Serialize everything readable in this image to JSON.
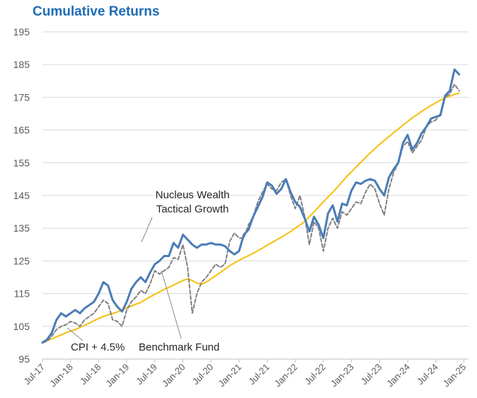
{
  "chart_data": {
    "type": "line",
    "title": "Cumulative Returns",
    "xlabel": "",
    "ylabel": "",
    "ylim": [
      95,
      195
    ],
    "yticks": [
      95,
      105,
      115,
      125,
      135,
      145,
      155,
      165,
      175,
      185,
      195
    ],
    "xlim": [
      0,
      91
    ],
    "xtick_labels": [
      "Jul-17",
      "Jan-18",
      "Jul-18",
      "Jan-19",
      "Jul-19",
      "Jan-20",
      "Jul-20",
      "Jan-21",
      "Jul-21",
      "Jan-22",
      "Jul-22",
      "Jan-23",
      "Jul-23",
      "Jan-24",
      "Jul-24",
      "Jan-25"
    ],
    "xtick_index_step": 6,
    "grid": "horizontal",
    "series": [
      {
        "name": "Nucleus Wealth Tactical Growth",
        "label_line1": "Nucleus Wealth",
        "label_line2": "Tactical Growth",
        "color": "#4a7cb7",
        "style": "solid",
        "values": [
          100,
          101,
          103,
          107,
          109,
          108,
          109,
          110,
          109,
          110.5,
          111.5,
          112.5,
          115,
          118.5,
          117.5,
          113,
          111,
          109.5,
          112.5,
          116.5,
          118.5,
          120,
          118.5,
          121.5,
          124,
          125,
          126.5,
          126.5,
          130.5,
          129,
          133,
          131.5,
          130,
          129,
          130,
          130,
          130.5,
          130,
          130,
          129.5,
          128,
          127,
          128,
          133,
          134.5,
          138.5,
          141.5,
          144.5,
          149,
          148,
          145.5,
          147,
          150,
          146,
          143,
          141.5,
          138,
          134,
          138.5,
          136,
          132,
          139.5,
          142,
          137,
          142.5,
          142,
          146.5,
          149,
          148.5,
          149.5,
          150,
          149.5,
          147,
          145,
          150.5,
          153,
          155,
          161,
          163.5,
          159,
          161,
          164,
          166,
          168.5,
          169,
          169.5,
          175.5,
          177,
          183.5,
          182
        ]
      },
      {
        "name": "Benchmark Fund",
        "color": "#808080",
        "style": "dashed",
        "values": [
          100,
          100.5,
          102,
          104,
          105,
          105.5,
          106.5,
          106,
          105,
          107,
          108,
          109,
          111,
          113,
          112,
          107,
          106.5,
          105,
          110,
          112.5,
          114,
          116,
          115,
          118,
          122,
          121,
          122,
          123,
          126,
          125.5,
          130,
          123,
          109,
          115,
          118.5,
          120,
          122,
          124,
          123,
          124,
          131,
          133.5,
          132,
          132,
          136,
          138.5,
          143,
          146,
          148.5,
          147,
          146.5,
          149,
          150,
          145,
          141,
          145,
          138.5,
          130,
          137,
          135,
          128,
          135,
          138,
          135,
          140,
          139,
          141,
          143,
          142.5,
          146,
          148.5,
          147,
          142.5,
          139,
          147,
          152,
          155,
          160,
          161.5,
          158,
          160,
          162,
          166,
          167.5,
          168,
          170,
          175,
          176,
          179,
          177
        ]
      },
      {
        "name": "CPI + 4.5%",
        "color": "#f5c31e",
        "style": "solid",
        "values": [
          100,
          100.6,
          101.2,
          101.8,
          102.4,
          103,
          103.5,
          104,
          104.7,
          105.3,
          106,
          106.7,
          107.4,
          108,
          108.5,
          108.9,
          109.4,
          110,
          110.6,
          111.2,
          111.8,
          112.3,
          113.2,
          114,
          114.8,
          115.5,
          116.3,
          116.9,
          117.6,
          118.3,
          119,
          119.5,
          119,
          118.2,
          117.9,
          118.5,
          119.5,
          120.5,
          121.5,
          122.5,
          123.5,
          124.4,
          125.2,
          125.9,
          126.6,
          127.3,
          128.1,
          128.9,
          129.8,
          130.6,
          131.4,
          132.2,
          133.1,
          134,
          135,
          136,
          137,
          138.5,
          140,
          141.5,
          143,
          144.5,
          146,
          147.5,
          149.2,
          150.8,
          152.2,
          153.7,
          155.1,
          156.6,
          158,
          159.3,
          160.6,
          161.8,
          163,
          164.2,
          165.3,
          166.5,
          167.6,
          168.7,
          169.7,
          170.7,
          171.6,
          172.5,
          173.3,
          174.1,
          174.8,
          175.4,
          175.9,
          176.3
        ]
      }
    ],
    "annotations": {
      "cpi_label": "CPI + 4.5%",
      "benchmark_label": "Benchmark Fund"
    }
  }
}
